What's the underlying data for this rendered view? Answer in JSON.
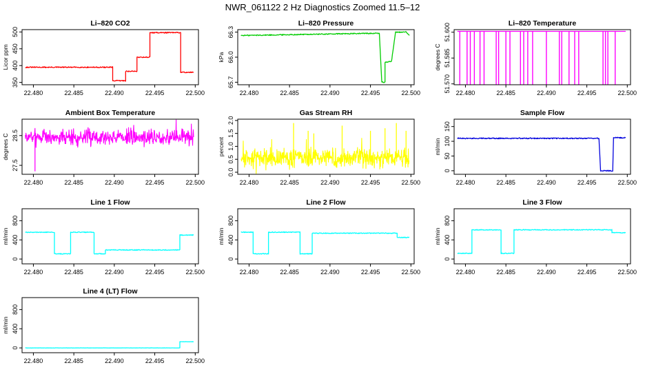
{
  "page": {
    "title": "NWR_061122  2 Hz Diagnostics Zoomed 11.5–12"
  },
  "chart_data": [
    {
      "type": "line",
      "title": "Li–820 CO2",
      "color": "#ff0000",
      "xlabel": "",
      "ylabel": "Licor ppm",
      "x_ticks": [
        "22.480",
        "22.485",
        "22.490",
        "22.495",
        "22.500"
      ],
      "y_ticks": [
        "350",
        "400",
        "450",
        "500"
      ],
      "y_tick_values": [
        350,
        400,
        450,
        500
      ],
      "xlim": [
        22.4786,
        22.5004
      ],
      "ylim": [
        343,
        507
      ],
      "noise": 1.5,
      "segments": [
        [
          22.479,
          395
        ],
        [
          22.4898,
          395
        ],
        [
          22.4898,
          355
        ],
        [
          22.4914,
          355
        ],
        [
          22.4914,
          383
        ],
        [
          22.4928,
          383
        ],
        [
          22.4928,
          425
        ],
        [
          22.4944,
          425
        ],
        [
          22.4944,
          498
        ],
        [
          22.4982,
          498
        ],
        [
          22.4982,
          380
        ],
        [
          22.4998,
          380
        ]
      ]
    },
    {
      "type": "line",
      "title": "Li–820 Pressure",
      "color": "#00cc00",
      "xlabel": "",
      "ylabel": "kPa",
      "x_ticks": [
        "22.480",
        "22.485",
        "22.490",
        "22.495",
        "22.500"
      ],
      "y_ticks": [
        "65.7",
        "66.0",
        "66.3"
      ],
      "y_tick_values": [
        65.7,
        66.0,
        66.3
      ],
      "xlim": [
        22.4786,
        22.5004
      ],
      "ylim": [
        65.67,
        66.33
      ],
      "noise": 0.006,
      "segments": [
        [
          22.479,
          66.26
        ],
        [
          22.4945,
          66.285
        ],
        [
          22.4961,
          66.285
        ],
        [
          22.4964,
          65.7
        ],
        [
          22.4968,
          65.7
        ],
        [
          22.4968,
          65.94
        ],
        [
          22.4976,
          65.95
        ],
        [
          22.4981,
          66.3
        ],
        [
          22.4994,
          66.3
        ],
        [
          22.4998,
          66.26
        ]
      ]
    },
    {
      "type": "line",
      "title": "Li–820 Temperature",
      "color": "#ff00ff",
      "xlabel": "",
      "ylabel": "degrees C",
      "x_ticks": [
        "22.480",
        "22.485",
        "22.490",
        "22.495",
        "22.500"
      ],
      "y_ticks": [
        "51.570",
        "51.585",
        "51.600"
      ],
      "y_tick_values": [
        51.57,
        51.585,
        51.6
      ],
      "xlim": [
        22.4786,
        22.5004
      ],
      "ylim": [
        51.5695,
        51.6015
      ],
      "baseline": 51.6005,
      "spike_low": 51.5695,
      "spikes": [
        22.4793,
        22.4802,
        22.4806,
        22.4811,
        22.4818,
        22.4823,
        22.4838,
        22.4841,
        22.485,
        22.4855,
        22.4868,
        22.4872,
        22.4877,
        22.4883,
        22.49,
        22.4916,
        22.4919,
        22.4928,
        22.4935,
        22.494,
        22.497,
        22.4973,
        22.4976,
        22.4985
      ]
    },
    {
      "type": "line",
      "title": "Ambient Box Temperature",
      "color": "#ff00ff",
      "xlabel": "",
      "ylabel": "degrees C",
      "x_ticks": [
        "22.480",
        "22.485",
        "22.490",
        "22.495",
        "22.500"
      ],
      "y_ticks": [
        "27.5",
        "28.5"
      ],
      "y_tick_values": [
        27.5,
        28.5
      ],
      "xlim": [
        22.4786,
        22.5004
      ],
      "ylim": [
        27.2,
        29.05
      ],
      "noise_series": {
        "from": 22.479,
        "to": 22.4998,
        "n": 520,
        "center": 28.45,
        "amp": 0.22,
        "seed": 7
      },
      "outliers": [
        [
          22.4802,
          27.3
        ]
      ]
    },
    {
      "type": "line",
      "title": "Gas Stream RH",
      "color": "#ffff00",
      "xlabel": "",
      "ylabel": "percent",
      "x_ticks": [
        "22.480",
        "22.485",
        "22.490",
        "22.495",
        "22.500"
      ],
      "y_ticks": [
        "0.0",
        "0.5",
        "1.0",
        "1.5",
        "2.0"
      ],
      "y_tick_values": [
        0,
        0.5,
        1.0,
        1.5,
        2.0
      ],
      "xlim": [
        22.4786,
        22.5004
      ],
      "ylim": [
        -0.08,
        2.05
      ],
      "noise_series": {
        "from": 22.479,
        "to": 22.4998,
        "n": 520,
        "center": 0.55,
        "amp": 0.3,
        "seed": 13
      },
      "outliers": [
        [
          22.4855,
          1.9
        ],
        [
          22.4873,
          1.6
        ],
        [
          22.488,
          1.5
        ],
        [
          22.4915,
          1.8
        ],
        [
          22.495,
          1.6
        ],
        [
          22.4968,
          1.7
        ],
        [
          22.4982,
          1.9
        ],
        [
          22.4994,
          1.6
        ]
      ]
    },
    {
      "type": "line",
      "title": "Sample Flow",
      "color": "#0000dd",
      "xlabel": "",
      "ylabel": "ml/min",
      "x_ticks": [
        "22.480",
        "22.485",
        "22.490",
        "22.495",
        "22.500"
      ],
      "y_ticks": [
        "0",
        "50",
        "100",
        "150"
      ],
      "y_tick_values": [
        0,
        50,
        100,
        150
      ],
      "xlim": [
        22.4786,
        22.5004
      ],
      "ylim": [
        -12,
        175
      ],
      "noise": 1.8,
      "segments": [
        [
          22.479,
          110
        ],
        [
          22.4965,
          110
        ],
        [
          22.4967,
          0
        ],
        [
          22.4982,
          0
        ],
        [
          22.4983,
          112
        ],
        [
          22.4998,
          112
        ]
      ]
    },
    {
      "type": "line",
      "title": "Line 1 Flow",
      "color": "#00ffff",
      "xlabel": "",
      "ylabel": "ml/min",
      "x_ticks": [
        "22.480",
        "22.485",
        "22.490",
        "22.495",
        "22.500"
      ],
      "y_ticks": [
        "0",
        "400",
        "800"
      ],
      "y_tick_values": [
        0,
        400,
        800
      ],
      "xlim": [
        22.4786,
        22.5004
      ],
      "ylim": [
        -100,
        1050
      ],
      "noise": 8,
      "segments": [
        [
          22.479,
          560
        ],
        [
          22.4826,
          560
        ],
        [
          22.4826,
          110
        ],
        [
          22.4846,
          110
        ],
        [
          22.4846,
          560
        ],
        [
          22.4875,
          560
        ],
        [
          22.4875,
          110
        ],
        [
          22.4889,
          110
        ],
        [
          22.4889,
          190
        ],
        [
          22.4981,
          190
        ],
        [
          22.4981,
          500
        ],
        [
          22.4998,
          500
        ]
      ]
    },
    {
      "type": "line",
      "title": "Line 2 Flow",
      "color": "#00ffff",
      "xlabel": "",
      "ylabel": "ml/min",
      "x_ticks": [
        "22.480",
        "22.485",
        "22.490",
        "22.495",
        "22.500"
      ],
      "y_ticks": [
        "0",
        "400",
        "800"
      ],
      "y_tick_values": [
        0,
        400,
        800
      ],
      "xlim": [
        22.4786,
        22.5004
      ],
      "ylim": [
        -100,
        1050
      ],
      "noise": 8,
      "segments": [
        [
          22.479,
          560
        ],
        [
          22.4805,
          560
        ],
        [
          22.4805,
          110
        ],
        [
          22.4824,
          110
        ],
        [
          22.4824,
          560
        ],
        [
          22.4863,
          560
        ],
        [
          22.4863,
          110
        ],
        [
          22.4878,
          110
        ],
        [
          22.4878,
          540
        ],
        [
          22.4983,
          540
        ],
        [
          22.4983,
          450
        ],
        [
          22.4998,
          450
        ]
      ]
    },
    {
      "type": "line",
      "title": "Line 3 Flow",
      "color": "#00ffff",
      "xlabel": "",
      "ylabel": "ml/min",
      "x_ticks": [
        "22.480",
        "22.485",
        "22.490",
        "22.495",
        "22.500"
      ],
      "y_ticks": [
        "0",
        "400",
        "800"
      ],
      "y_tick_values": [
        0,
        400,
        800
      ],
      "xlim": [
        22.4786,
        22.5004
      ],
      "ylim": [
        -100,
        1050
      ],
      "noise": 8,
      "segments": [
        [
          22.479,
          120
        ],
        [
          22.4808,
          120
        ],
        [
          22.4808,
          610
        ],
        [
          22.4844,
          610
        ],
        [
          22.4844,
          120
        ],
        [
          22.486,
          120
        ],
        [
          22.486,
          610
        ],
        [
          22.4981,
          610
        ],
        [
          22.4981,
          550
        ],
        [
          22.4998,
          550
        ]
      ]
    },
    {
      "type": "line",
      "title": "Line 4 (LT) Flow",
      "color": "#00ffff",
      "xlabel": "",
      "ylabel": "ml/min",
      "x_ticks": [
        "22.480",
        "22.485",
        "22.490",
        "22.495",
        "22.500"
      ],
      "y_ticks": [
        "0",
        "400",
        "800"
      ],
      "y_tick_values": [
        0,
        400,
        800
      ],
      "xlim": [
        22.4786,
        22.5004
      ],
      "ylim": [
        -100,
        1050
      ],
      "noise": 2,
      "segments": [
        [
          22.479,
          0
        ],
        [
          22.4981,
          0
        ],
        [
          22.4981,
          130
        ],
        [
          22.4998,
          130
        ]
      ]
    }
  ]
}
